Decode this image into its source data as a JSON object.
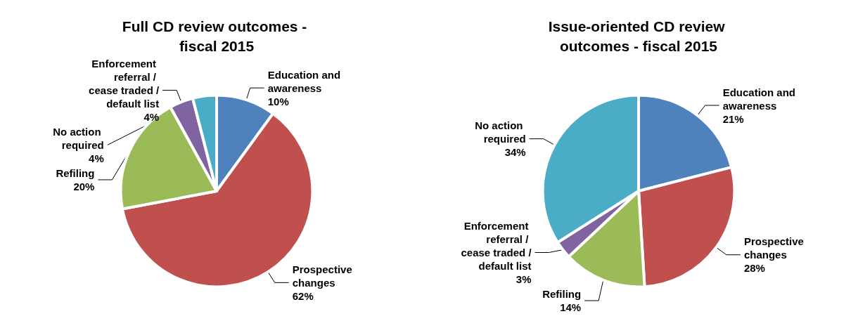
{
  "chart_data": [
    {
      "type": "pie",
      "title": "Full CD review outcomes - fiscal 2015",
      "categories": [
        "Education and awareness",
        "Prospective changes",
        "Refiling",
        "Enforcement referral / cease traded / default list",
        "No action required"
      ],
      "values": [
        10,
        62,
        20,
        4,
        4
      ],
      "value_labels": [
        "10%",
        "62%",
        "20%",
        "4%",
        "4%"
      ],
      "colors": [
        "#4f81bd",
        "#c0504d",
        "#9bbb59",
        "#8064a2",
        "#4bacc6"
      ],
      "legend": false
    },
    {
      "type": "pie",
      "title": "Issue-oriented CD review outcomes - fiscal 2015",
      "categories": [
        "Education and awareness",
        "Prospective changes",
        "Refiling",
        "Enforcement referral / cease traded / default list",
        "No action required"
      ],
      "values": [
        21,
        28,
        14,
        3,
        34
      ],
      "value_labels": [
        "21%",
        "28%",
        "14%",
        "3%",
        "34%"
      ],
      "colors": [
        "#4f81bd",
        "#c0504d",
        "#9bbb59",
        "#8064a2",
        "#4bacc6"
      ],
      "legend": false
    }
  ]
}
